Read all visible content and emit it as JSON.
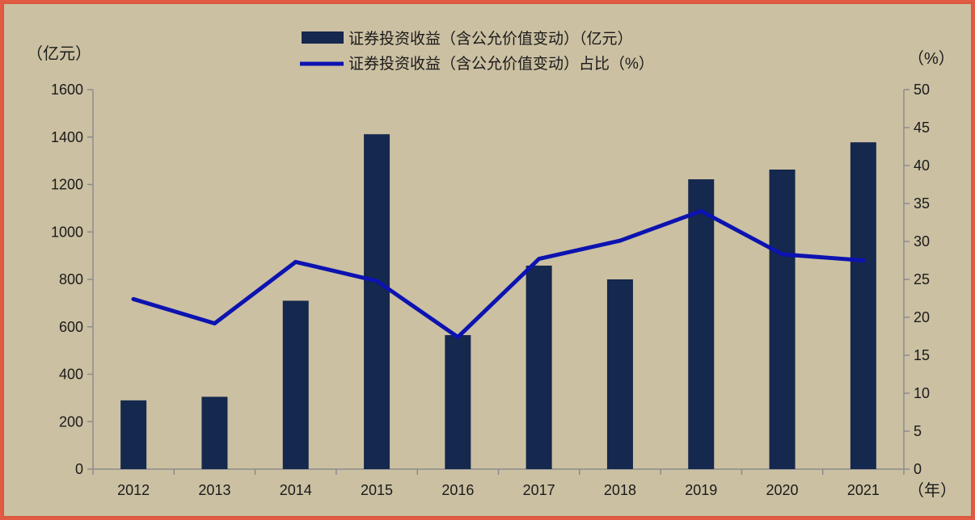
{
  "chart_data": {
    "type": "bar+line",
    "categories": [
      "2012",
      "2013",
      "2014",
      "2015",
      "2016",
      "2017",
      "2018",
      "2019",
      "2020",
      "2021"
    ],
    "series": [
      {
        "name": "证券投资收益（含公允价值变动）（亿元）",
        "type": "bar",
        "axis": "left",
        "color": "#15284d",
        "values": [
          290,
          305,
          710,
          1412,
          565,
          858,
          800,
          1222,
          1263,
          1378
        ]
      },
      {
        "name": "证券投资收益（含公允价值变动）占比（%）",
        "type": "line",
        "axis": "right",
        "color": "#0c13b0",
        "values": [
          22.4,
          19.2,
          27.3,
          24.8,
          17.4,
          27.7,
          30.1,
          34.0,
          28.3,
          27.5
        ]
      }
    ],
    "y_left": {
      "unit": "（亿元）",
      "ylim": [
        0,
        1600
      ],
      "ticks": [
        "0",
        "200",
        "400",
        "600",
        "800",
        "1000",
        "1200",
        "1400",
        "1600"
      ]
    },
    "y_right": {
      "unit": "（%）",
      "ylim": [
        0,
        50
      ],
      "ticks": [
        "0",
        "5",
        "10",
        "15",
        "20",
        "25",
        "30",
        "35",
        "40",
        "45",
        "50"
      ]
    },
    "x_unit": "（年）",
    "legend_position": "top-center",
    "grid": false
  }
}
